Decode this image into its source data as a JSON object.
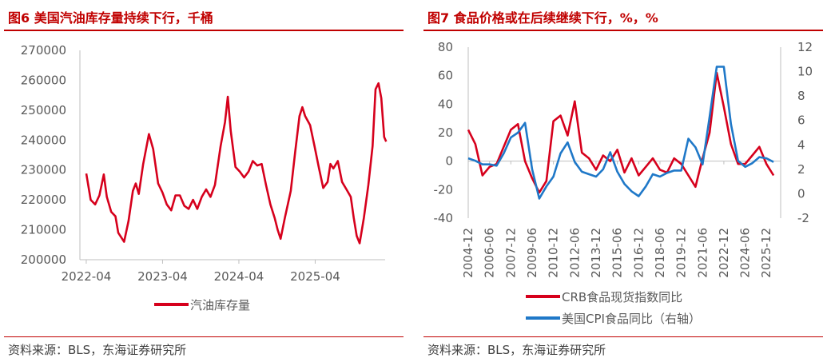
{
  "figures": [
    {
      "title": "图6  美国汽油库存量持续下行，千桶",
      "source": "资料来源：BLS，东海证券研究所"
    },
    {
      "title": "图7  食品价格或在后续继续下行，%，%",
      "source": "资料来源：BLS，东海证券研究所"
    }
  ],
  "chart_data": [
    {
      "type": "line",
      "title": "图6  美国汽油库存量持续下行，千桶",
      "ylim": [
        200000,
        270000
      ],
      "yticks": [
        "270000",
        "260000",
        "250000",
        "240000",
        "230000",
        "220000",
        "210000",
        "200000"
      ],
      "xlim": [
        "2022-03",
        "2026-03"
      ],
      "xticks": [
        "2022-04",
        "2023-04",
        "2024-04",
        "2025-04"
      ],
      "legend_position": "bottom",
      "grid": false,
      "series": [
        {
          "name": "汽油库存量",
          "color": "#d6001c",
          "points": [
            [
              "2022-04-01",
              228800
            ],
            [
              "2022-04-22",
              220000
            ],
            [
              "2022-05-13",
              218500
            ],
            [
              "2022-06-03",
              221500
            ],
            [
              "2022-06-24",
              228500
            ],
            [
              "2022-07-08",
              221000
            ],
            [
              "2022-07-29",
              216000
            ],
            [
              "2022-08-19",
              214500
            ],
            [
              "2022-09-02",
              209000
            ],
            [
              "2022-09-30",
              206000
            ],
            [
              "2022-10-21",
              213000
            ],
            [
              "2022-11-11",
              223000
            ],
            [
              "2022-11-25",
              225500
            ],
            [
              "2022-12-09",
              222000
            ],
            [
              "2022-12-30",
              232000
            ],
            [
              "2023-01-27",
              242000
            ],
            [
              "2023-02-17",
              237000
            ],
            [
              "2023-03-10",
              225500
            ],
            [
              "2023-03-31",
              222500
            ],
            [
              "2023-04-21",
              218500
            ],
            [
              "2023-05-12",
              216500
            ],
            [
              "2023-06-02",
              221500
            ],
            [
              "2023-06-23",
              221500
            ],
            [
              "2023-07-14",
              218000
            ],
            [
              "2023-08-04",
              217000
            ],
            [
              "2023-08-25",
              220000
            ],
            [
              "2023-09-15",
              217000
            ],
            [
              "2023-10-06",
              221000
            ],
            [
              "2023-10-27",
              223500
            ],
            [
              "2023-11-17",
              221000
            ],
            [
              "2023-12-08",
              225000
            ],
            [
              "2024-01-05",
              238000
            ],
            [
              "2024-01-26",
              246000
            ],
            [
              "2024-02-09",
              254500
            ],
            [
              "2024-02-23",
              243000
            ],
            [
              "2024-03-15",
              231000
            ],
            [
              "2024-04-05",
              229500
            ],
            [
              "2024-04-26",
              227500
            ],
            [
              "2024-05-17",
              229500
            ],
            [
              "2024-06-07",
              233000
            ],
            [
              "2024-06-28",
              231500
            ],
            [
              "2024-07-19",
              232000
            ],
            [
              "2024-08-09",
              225000
            ],
            [
              "2024-08-30",
              218500
            ],
            [
              "2024-09-20",
              214000
            ],
            [
              "2024-10-04",
              210000
            ],
            [
              "2024-10-18",
              207000
            ],
            [
              "2024-11-08",
              214000
            ],
            [
              "2024-12-06",
              223000
            ],
            [
              "2024-12-27",
              236000
            ],
            [
              "2025-01-17",
              248000
            ],
            [
              "2025-01-31",
              251000
            ],
            [
              "2025-02-14",
              248000
            ],
            [
              "2025-03-07",
              245000
            ],
            [
              "2025-03-28",
              238000
            ],
            [
              "2025-04-18",
              231000
            ],
            [
              "2025-05-09",
              224000
            ],
            [
              "2025-05-30",
              226000
            ],
            [
              "2025-06-13",
              232000
            ],
            [
              "2025-06-27",
              230500
            ],
            [
              "2025-07-18",
              233000
            ],
            [
              "2025-08-08",
              226000
            ],
            [
              "2025-08-29",
              223500
            ],
            [
              "2025-09-19",
              221000
            ],
            [
              "2025-10-03",
              214000
            ],
            [
              "2025-10-17",
              208000
            ],
            [
              "2025-10-31",
              205500
            ],
            [
              "2025-11-21",
              214000
            ],
            [
              "2025-12-12",
              225000
            ],
            [
              "2026-01-02",
              238000
            ],
            [
              "2026-01-16",
              257000
            ],
            [
              "2026-01-30",
              259000
            ],
            [
              "2026-02-13",
              254000
            ],
            [
              "2026-02-27",
              241000
            ],
            [
              "2026-03-06",
              239500
            ]
          ]
        }
      ]
    },
    {
      "type": "line",
      "title": "图7  食品价格或在后续继续下行，%，%",
      "ylim": [
        -40,
        80
      ],
      "yticks": [
        "80",
        "60",
        "40",
        "20",
        "0",
        "-20",
        "-40"
      ],
      "y2lim": [
        -2,
        12
      ],
      "y2ticks": [
        "12",
        "10",
        "8",
        "6",
        "4",
        "2",
        "0",
        "-2"
      ],
      "xlim": [
        "2004-12",
        "2026-12"
      ],
      "xticks": [
        "2004-12",
        "2006-06",
        "2007-12",
        "2009-06",
        "2010-12",
        "2012-06",
        "2013-12",
        "2015-06",
        "2016-12",
        "2018-06",
        "2019-12",
        "2021-06",
        "2022-12",
        "2024-06",
        "2025-12"
      ],
      "legend_position": "bottom",
      "grid": false,
      "series": [
        {
          "name": "CRB食品现货指数同比",
          "axis": "left",
          "color": "#d6001c",
          "points": [
            [
              "2004-12",
              22
            ],
            [
              "2005-06",
              12
            ],
            [
              "2005-12",
              -10
            ],
            [
              "2006-06",
              -4
            ],
            [
              "2006-12",
              -2
            ],
            [
              "2007-06",
              10
            ],
            [
              "2007-12",
              22
            ],
            [
              "2008-06",
              26
            ],
            [
              "2008-12",
              0
            ],
            [
              "2009-06",
              -12
            ],
            [
              "2009-12",
              -22
            ],
            [
              "2010-06",
              -14
            ],
            [
              "2010-12",
              28
            ],
            [
              "2011-06",
              32
            ],
            [
              "2011-12",
              18
            ],
            [
              "2012-06",
              42
            ],
            [
              "2012-12",
              6
            ],
            [
              "2013-06",
              2
            ],
            [
              "2013-12",
              -6
            ],
            [
              "2014-06",
              4
            ],
            [
              "2014-12",
              0
            ],
            [
              "2015-06",
              8
            ],
            [
              "2015-12",
              -8
            ],
            [
              "2016-06",
              2
            ],
            [
              "2016-12",
              -10
            ],
            [
              "2017-06",
              -4
            ],
            [
              "2017-12",
              2
            ],
            [
              "2018-06",
              -6
            ],
            [
              "2018-12",
              -8
            ],
            [
              "2019-06",
              2
            ],
            [
              "2019-12",
              -2
            ],
            [
              "2020-06",
              -10
            ],
            [
              "2020-12",
              -18
            ],
            [
              "2021-06",
              2
            ],
            [
              "2021-12",
              20
            ],
            [
              "2022-06",
              62
            ],
            [
              "2022-12",
              38
            ],
            [
              "2023-06",
              12
            ],
            [
              "2023-12",
              -2
            ],
            [
              "2024-06",
              -2
            ],
            [
              "2024-12",
              4
            ],
            [
              "2025-06",
              10
            ],
            [
              "2025-12",
              -2
            ],
            [
              "2026-06",
              -10
            ]
          ]
        },
        {
          "name": "美国CPI食品同比（右轴）",
          "axis": "right",
          "color": "#1f78c8",
          "points": [
            [
              "2004-12",
              2.9
            ],
            [
              "2005-06",
              2.7
            ],
            [
              "2005-12",
              2.4
            ],
            [
              "2006-06",
              2.4
            ],
            [
              "2006-12",
              2.3
            ],
            [
              "2007-06",
              3.3
            ],
            [
              "2007-12",
              4.6
            ],
            [
              "2008-06",
              5.0
            ],
            [
              "2008-12",
              5.8
            ],
            [
              "2009-06",
              2.0
            ],
            [
              "2009-12",
              -0.4
            ],
            [
              "2010-06",
              0.6
            ],
            [
              "2010-12",
              1.4
            ],
            [
              "2011-06",
              3.3
            ],
            [
              "2011-12",
              4.2
            ],
            [
              "2012-06",
              2.6
            ],
            [
              "2012-12",
              1.8
            ],
            [
              "2013-06",
              1.6
            ],
            [
              "2013-12",
              1.4
            ],
            [
              "2014-06",
              2.0
            ],
            [
              "2014-12",
              3.4
            ],
            [
              "2015-06",
              1.8
            ],
            [
              "2015-12",
              0.8
            ],
            [
              "2016-06",
              0.2
            ],
            [
              "2016-12",
              -0.2
            ],
            [
              "2017-06",
              0.6
            ],
            [
              "2017-12",
              1.6
            ],
            [
              "2018-06",
              1.4
            ],
            [
              "2018-12",
              1.7
            ],
            [
              "2019-06",
              1.9
            ],
            [
              "2019-12",
              1.9
            ],
            [
              "2020-06",
              4.5
            ],
            [
              "2020-12",
              3.8
            ],
            [
              "2021-06",
              2.4
            ],
            [
              "2021-12",
              6.3
            ],
            [
              "2022-06",
              10.4
            ],
            [
              "2022-12",
              10.4
            ],
            [
              "2023-06",
              5.7
            ],
            [
              "2023-12",
              2.7
            ],
            [
              "2024-06",
              2.2
            ],
            [
              "2024-12",
              2.5
            ],
            [
              "2025-06",
              3.0
            ],
            [
              "2025-12",
              2.9
            ],
            [
              "2026-06",
              2.6
            ]
          ]
        }
      ]
    }
  ]
}
